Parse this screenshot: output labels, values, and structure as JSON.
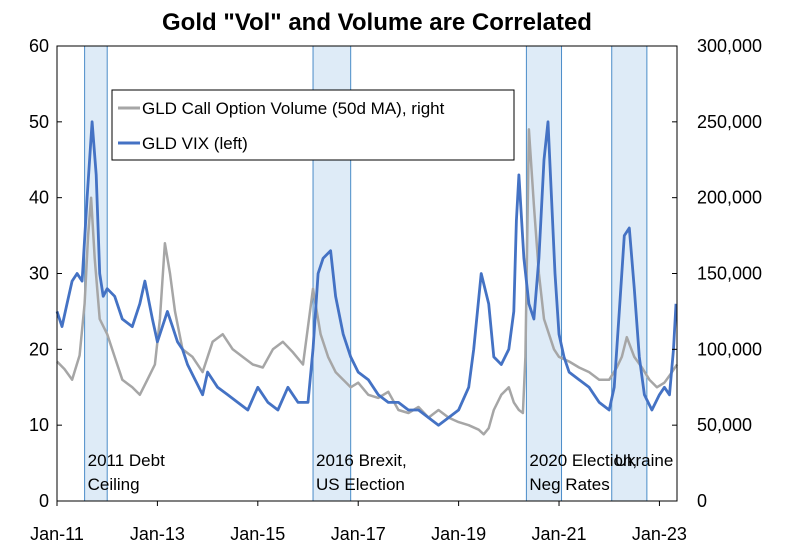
{
  "chart_data": {
    "type": "line",
    "title": "Gold \"Vol\" and Volume are Correlated",
    "x_axis": {
      "ticks": [
        "Jan-11",
        "Jan-13",
        "Jan-15",
        "Jan-17",
        "Jan-19",
        "Jan-21",
        "Jan-23"
      ],
      "range": [
        "2011-01",
        "2023-05"
      ]
    },
    "y_left": {
      "range": [
        0,
        60
      ],
      "ticks": [
        "0",
        "10",
        "20",
        "30",
        "40",
        "50",
        "60"
      ]
    },
    "y_right": {
      "range": [
        0,
        300000
      ],
      "ticks": [
        "0",
        "50,000",
        "100,000",
        "150,000",
        "200,000",
        "250,000",
        "300,000"
      ]
    },
    "legend": {
      "placement": "top-left",
      "entries": [
        {
          "label": "GLD Call Option Volume (50d MA), right",
          "color": "#a6a6a6"
        },
        {
          "label": "GLD VIX (left)",
          "color": "#4472c4"
        }
      ]
    },
    "events": [
      {
        "label_lines": [
          "2011 Debt",
          "Ceiling"
        ],
        "start": 2011.55,
        "end": 2012.0
      },
      {
        "label_lines": [
          "2016 Brexit,",
          "US Election"
        ],
        "start": 2016.1,
        "end": 2016.85
      },
      {
        "label_lines": [
          "2020 Election,",
          "Neg Rates"
        ],
        "start": 2020.35,
        "end": 2021.05
      },
      {
        "label_lines": [
          "Ukraine"
        ],
        "start": 2022.05,
        "end": 2022.75
      }
    ],
    "series": [
      {
        "name": "GLD Call Option Volume (50d MA), right",
        "axis": "right",
        "color": "#a6a6a6",
        "x": [
          2011.0,
          2011.15,
          2011.3,
          2011.45,
          2011.55,
          2011.62,
          2011.68,
          2011.75,
          2011.85,
          2012.0,
          2012.15,
          2012.3,
          2012.5,
          2012.65,
          2012.8,
          2012.95,
          2013.05,
          2013.15,
          2013.25,
          2013.35,
          2013.5,
          2013.7,
          2013.9,
          2014.1,
          2014.3,
          2014.5,
          2014.7,
          2014.9,
          2015.1,
          2015.3,
          2015.5,
          2015.7,
          2015.9,
          2016.1,
          2016.25,
          2016.4,
          2016.55,
          2016.7,
          2016.85,
          2017.0,
          2017.2,
          2017.4,
          2017.6,
          2017.8,
          2018.0,
          2018.2,
          2018.4,
          2018.6,
          2018.8,
          2019.0,
          2019.2,
          2019.4,
          2019.5,
          2019.6,
          2019.7,
          2019.85,
          2020.0,
          2020.1,
          2020.2,
          2020.28,
          2020.33,
          2020.4,
          2020.5,
          2020.6,
          2020.7,
          2020.8,
          2020.9,
          2021.0,
          2021.2,
          2021.4,
          2021.6,
          2021.8,
          2022.0,
          2022.15,
          2022.25,
          2022.35,
          2022.5,
          2022.65,
          2022.8,
          2022.95,
          2023.1,
          2023.25,
          2023.35
        ],
        "y": [
          92000,
          87000,
          80000,
          96000,
          130000,
          175000,
          200000,
          160000,
          120000,
          110000,
          95000,
          80000,
          75000,
          70000,
          80000,
          90000,
          120000,
          170000,
          150000,
          125000,
          100000,
          95000,
          85000,
          105000,
          110000,
          100000,
          95000,
          90000,
          88000,
          100000,
          105000,
          98000,
          90000,
          140000,
          110000,
          95000,
          85000,
          80000,
          75000,
          78000,
          70000,
          68000,
          72000,
          60000,
          58000,
          62000,
          55000,
          60000,
          55000,
          52000,
          50000,
          47000,
          44000,
          48000,
          60000,
          70000,
          75000,
          65000,
          60000,
          58000,
          95000,
          245000,
          195000,
          150000,
          120000,
          110000,
          100000,
          95000,
          92000,
          88000,
          85000,
          80000,
          80000,
          88000,
          95000,
          108000,
          95000,
          88000,
          80000,
          75000,
          78000,
          85000,
          90000
        ]
      },
      {
        "name": "GLD VIX (left)",
        "axis": "left",
        "color": "#4472c4",
        "x": [
          2011.0,
          2011.1,
          2011.2,
          2011.3,
          2011.4,
          2011.5,
          2011.6,
          2011.7,
          2011.78,
          2011.85,
          2011.92,
          2012.0,
          2012.15,
          2012.3,
          2012.5,
          2012.65,
          2012.75,
          2012.9,
          2013.0,
          2013.2,
          2013.3,
          2013.4,
          2013.5,
          2013.6,
          2013.75,
          2013.9,
          2014.0,
          2014.2,
          2014.4,
          2014.6,
          2014.8,
          2015.0,
          2015.2,
          2015.4,
          2015.6,
          2015.8,
          2016.0,
          2016.1,
          2016.2,
          2016.3,
          2016.45,
          2016.55,
          2016.7,
          2016.85,
          2017.0,
          2017.2,
          2017.4,
          2017.6,
          2017.8,
          2018.0,
          2018.2,
          2018.4,
          2018.6,
          2018.8,
          2019.0,
          2019.2,
          2019.3,
          2019.45,
          2019.6,
          2019.7,
          2019.85,
          2020.0,
          2020.1,
          2020.15,
          2020.2,
          2020.3,
          2020.4,
          2020.5,
          2020.6,
          2020.7,
          2020.78,
          2020.85,
          2020.92,
          2021.0,
          2021.1,
          2021.2,
          2021.4,
          2021.6,
          2021.8,
          2022.0,
          2022.1,
          2022.2,
          2022.3,
          2022.4,
          2022.5,
          2022.6,
          2022.7,
          2022.85,
          2023.0,
          2023.1,
          2023.2,
          2023.28,
          2023.33
        ],
        "y": [
          25,
          23,
          26,
          29,
          30,
          29,
          40,
          50,
          43,
          30,
          27,
          28,
          27,
          24,
          23,
          26,
          29,
          24,
          21,
          25,
          23,
          21,
          20,
          18,
          16,
          14,
          17,
          15,
          14,
          13,
          12,
          15,
          13,
          12,
          15,
          13,
          13,
          20,
          30,
          32,
          33,
          27,
          22,
          19,
          17,
          16,
          14,
          13,
          13,
          12,
          12,
          11,
          10,
          11,
          12,
          15,
          20,
          30,
          26,
          19,
          18,
          20,
          25,
          37,
          43,
          32,
          26,
          24,
          32,
          45,
          50,
          40,
          30,
          22,
          19,
          17,
          16,
          15,
          13,
          12,
          15,
          25,
          35,
          36,
          28,
          19,
          14,
          12,
          14,
          15,
          14,
          20,
          26
        ]
      }
    ]
  }
}
